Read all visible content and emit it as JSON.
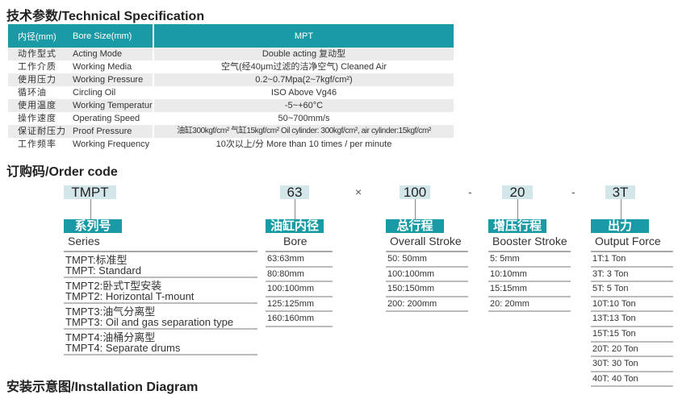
{
  "spec": {
    "title": "技术参数/Technical Specification",
    "header": [
      "内径(mm)",
      "Bore Size(mm)",
      "MPT"
    ],
    "rows": [
      [
        "动作型式",
        "Acting Mode",
        "Double acting 复动型"
      ],
      [
        "工作介质",
        "Working Media",
        "空气(经40μm过滤的洁净空气)  Cleaned Air"
      ],
      [
        "使用压力",
        "Working Pressure",
        "0.2~0.7Mpa(2~7kgf/cm²)"
      ],
      [
        "循环油",
        "Circling Oil",
        "ISO Above Vg46"
      ],
      [
        "使用温度",
        "Working Temperature",
        "-5~+60°C"
      ],
      [
        "操作速度",
        "Operating Speed",
        "50~700mm/s"
      ],
      [
        "保证耐压力",
        "Proof Pressure",
        "油缸300kgf/cm²  气缸15kgf/cm²  Oil cylinder: 300kgf/cm², air cylinder:15kgf/cm²"
      ],
      [
        "工作频率",
        "Working Frequency",
        "10次以上/分   More than 10 times / per minute"
      ]
    ]
  },
  "order": {
    "title": "订购码/Order code",
    "codes": [
      "TMPT",
      "63",
      "100",
      "20",
      "3T"
    ],
    "separators": [
      "×",
      "-",
      "-"
    ],
    "groups": [
      {
        "label": "系列号",
        "sub": "Series",
        "items": [
          "TMPT:标准型\nTMPT: Standard",
          "TMPT2:卧式T型安装\nTMPT2: Horizontal T-mount",
          "TMPT3:油气分离型\nTMPT3: Oil and gas separation type",
          "TMPT4:油桶分离型\nTMPT4: Separate drums"
        ]
      },
      {
        "label": "油缸内径",
        "sub": "Bore",
        "items": [
          "63:63mm",
          "80:80mm",
          "100:100mm",
          "125:125mm",
          "160:160mm"
        ]
      },
      {
        "label": "总行程",
        "sub": "Overall Stroke",
        "items": [
          "50: 50mm",
          "100:100mm",
          "150:150mm",
          "200: 200mm"
        ]
      },
      {
        "label": "增压行程",
        "sub": "Booster Stroke",
        "items": [
          "5: 5mm",
          "10:10mm",
          "15:15mm",
          "20: 20mm"
        ]
      },
      {
        "label": "出力",
        "sub": "Output Force",
        "items": [
          "1T:1 Ton",
          "3T: 3 Ton",
          "5T: 5 Ton",
          "10T:10 Ton",
          "13T:13 Ton",
          "15T:15 Ton",
          "20T: 20 Ton",
          "30T: 30 Ton",
          "40T: 40 Ton"
        ]
      }
    ]
  },
  "install": {
    "title": "安装示意图/Installation Diagram"
  },
  "colors": {
    "accent": "#1a9aa5",
    "code_bg": "#d3e6ea"
  }
}
